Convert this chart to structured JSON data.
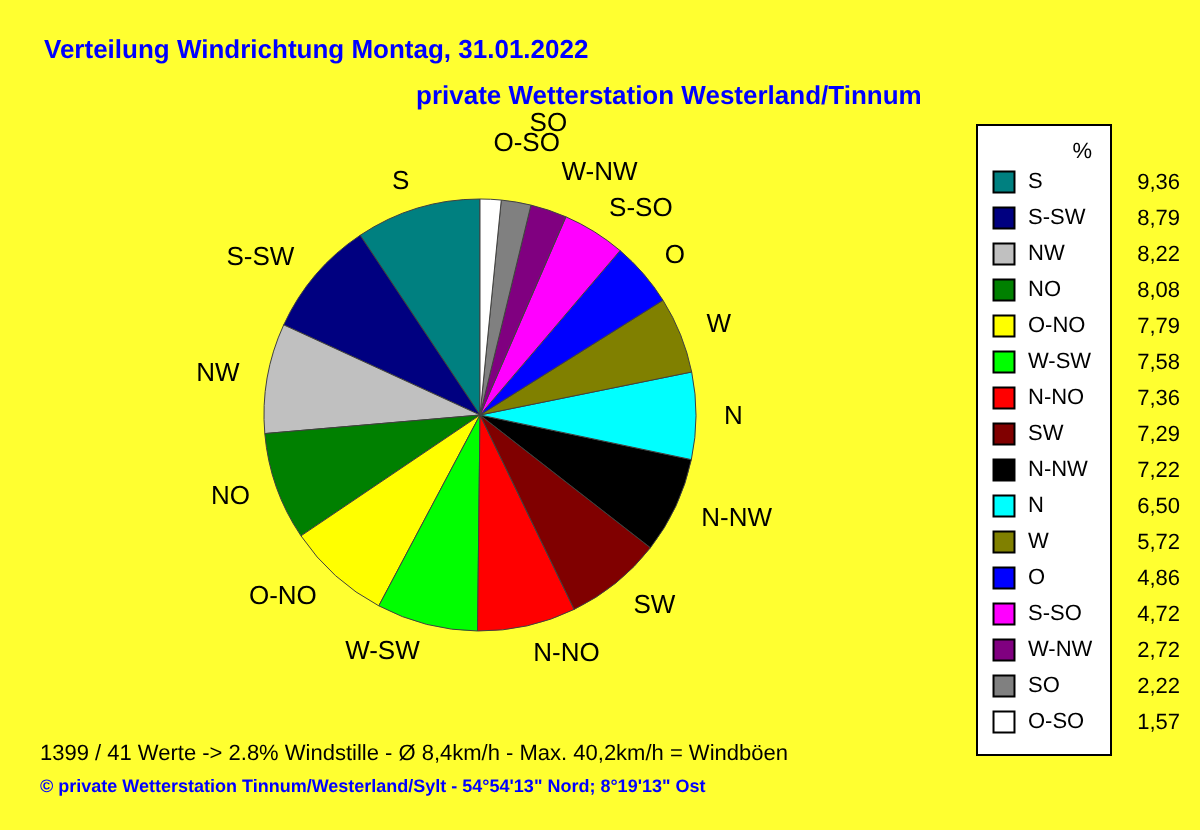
{
  "chart_data": {
    "type": "pie",
    "title": "Verteilung Windrichtung   Montag, 31.01.2022",
    "subtitle": "private Wetterstation Westerland/Tinnum",
    "legend_title": "%",
    "categories": [
      "S",
      "S-SW",
      "NW",
      "NO",
      "O-NO",
      "W-SW",
      "N-NO",
      "SW",
      "N-NW",
      "N",
      "W",
      "O",
      "S-SO",
      "W-NW",
      "SO",
      "O-SO"
    ],
    "values": [
      9.36,
      8.79,
      8.22,
      8.08,
      7.79,
      7.58,
      7.36,
      7.29,
      7.22,
      6.5,
      5.72,
      4.86,
      4.72,
      2.72,
      2.22,
      1.57
    ],
    "value_labels": [
      "9,36",
      "8,79",
      "8,22",
      "8,08",
      "7,79",
      "7,58",
      "7,36",
      "7,29",
      "7,22",
      "6,50",
      "5,72",
      "4,86",
      "4,72",
      "2,72",
      "2,22",
      "1,57"
    ],
    "colors": [
      "#008080",
      "#000080",
      "#c0c0c0",
      "#008000",
      "#ffff00",
      "#00ff00",
      "#ff0000",
      "#800000",
      "#000000",
      "#00ffff",
      "#808000",
      "#0000ff",
      "#ff00ff",
      "#800080",
      "#808080",
      "#ffffff"
    ],
    "legend": "right",
    "annotations": [
      "1399 / 41 Werte  -> 2.8% Windstille   -   Ø 8,4km/h  -  Max. 40,2km/h = Windböen",
      "© private Wetterstation Tinnum/Westerland/Sylt  -  54°54'13\" Nord; 8°19'13\" Ost"
    ]
  }
}
